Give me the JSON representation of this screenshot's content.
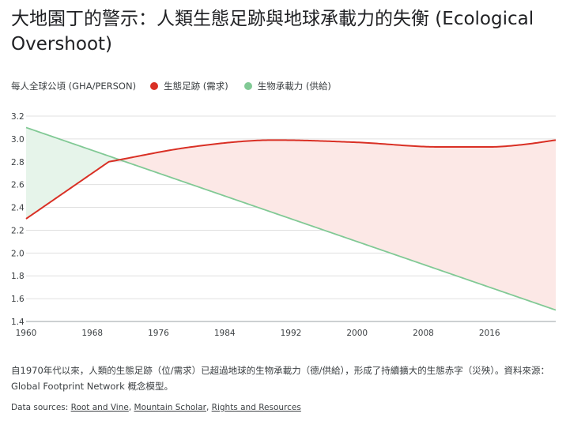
{
  "title": "大地園丁的警示：人類生態足跡與地球承載力的失衡 (Ecological Overshoot)",
  "legend": {
    "unit": "每人全球公頃 (GHA/PERSON)",
    "items": [
      {
        "label": "生態足跡 (需求)",
        "color": "#d93025"
      },
      {
        "label": "生物承載力 (供給)",
        "color": "#81c995"
      }
    ]
  },
  "note": "自1970年代以來，人類的生態足跡（位/需求）已超過地球的生物承載力（德/供給），形成了持續擴大的生態赤字（災殃）。資料來源：Global Footprint Network 概念模型。",
  "sources": {
    "prefix": "Data sources: ",
    "links": [
      "Root and Vine",
      "Mountain Scholar",
      "Rights and Resources"
    ]
  },
  "chart_data": {
    "type": "line",
    "xlim": [
      1960,
      2024
    ],
    "ylim": [
      1.4,
      3.2
    ],
    "x_ticks": [
      "1960",
      "1968",
      "1976",
      "1984",
      "1992",
      "2000",
      "2008",
      "2016"
    ],
    "y_ticks": [
      "1.4",
      "1.6",
      "1.8",
      "2.0",
      "2.2",
      "2.4",
      "2.6",
      "2.8",
      "3.0",
      "3.2"
    ],
    "grid": true,
    "series": [
      {
        "name": "生態足跡 (需求)",
        "color": "#d93025",
        "x": [
          1960,
          1970,
          1980,
          1990,
          2000,
          2010,
          2016,
          2020,
          2024
        ],
        "y": [
          2.3,
          2.8,
          2.93,
          2.99,
          2.97,
          2.93,
          2.93,
          2.95,
          2.99
        ]
      },
      {
        "name": "生物承載力 (供給)",
        "color": "#81c995",
        "x": [
          1960,
          2024
        ],
        "y": [
          3.1,
          1.5
        ]
      }
    ],
    "fills": {
      "deficit_color": "#fce8e6",
      "reserve_color": "#e6f4ea"
    }
  }
}
